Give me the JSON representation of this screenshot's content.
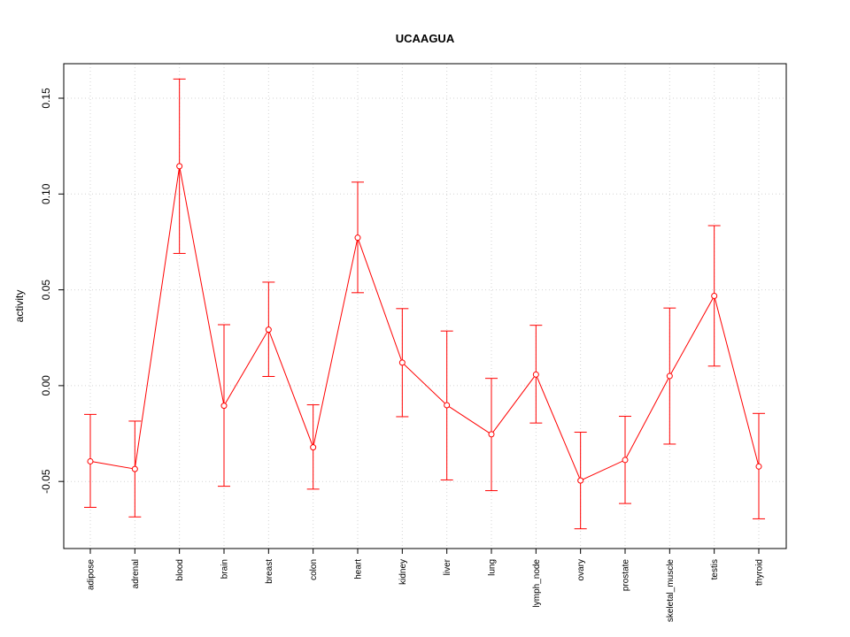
{
  "chart_data": {
    "type": "line",
    "title": "UCAAGUA",
    "xlabel": "",
    "ylabel": "activity",
    "ylim": [
      -0.085,
      0.168
    ],
    "yticks": [
      -0.05,
      0.0,
      0.05,
      0.1,
      0.15
    ],
    "ytick_labels": [
      "-0.05",
      "0.00",
      "0.05",
      "0.10",
      "0.15"
    ],
    "grid": true,
    "series_color": "#ff0000",
    "categories": [
      "adipose",
      "adrenal",
      "blood",
      "brain",
      "breast",
      "colon",
      "heart",
      "kidney",
      "liver",
      "lung",
      "lymph_node",
      "ovary",
      "prostate",
      "skeletal_muscle",
      "testis",
      "thyroid"
    ],
    "values": [
      -0.0395,
      -0.0435,
      0.1145,
      -0.0105,
      0.0292,
      -0.0322,
      0.0772,
      0.012,
      -0.0102,
      -0.0254,
      0.0058,
      -0.0495,
      -0.0388,
      0.005,
      0.0468,
      -0.0422
    ],
    "upper": [
      -0.015,
      -0.0185,
      0.16,
      0.0318,
      0.054,
      -0.01,
      0.1062,
      0.0402,
      0.0285,
      0.0038,
      0.0315,
      -0.0243,
      -0.016,
      0.0405,
      0.0835,
      -0.0145
    ],
    "lower": [
      -0.0635,
      -0.0685,
      0.069,
      -0.0525,
      0.0048,
      -0.054,
      0.0485,
      -0.0162,
      -0.0492,
      -0.0548,
      -0.0195,
      -0.0747,
      -0.0615,
      -0.0305,
      0.0102,
      -0.0695
    ]
  }
}
